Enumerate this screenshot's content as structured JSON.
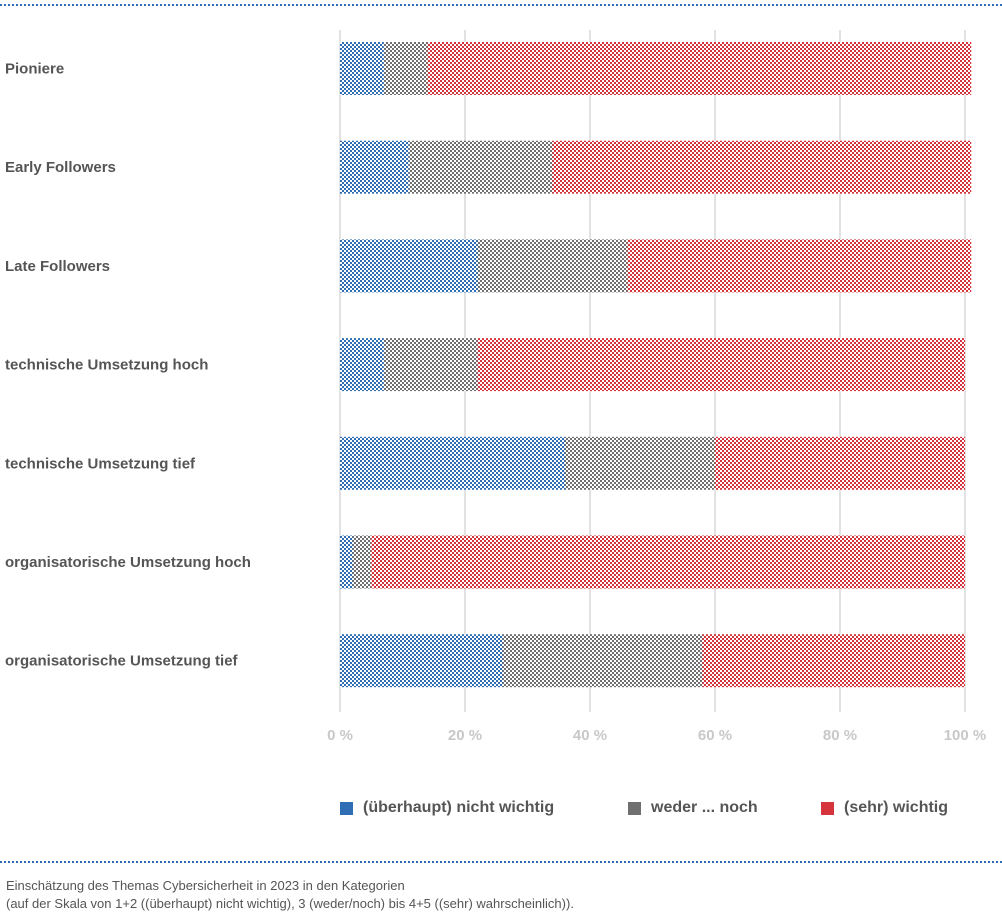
{
  "chart_data": {
    "type": "bar",
    "orientation": "horizontal",
    "stacked": true,
    "categories": [
      "Pioniere",
      "Early Followers",
      "Late Followers",
      "technische Umsetzung hoch",
      "technische Umsetzung tief",
      "organisatorische Umsetzung hoch",
      "organisatorische Umsetzung tief"
    ],
    "series": [
      {
        "name": "(überhaupt) nicht wichtig",
        "color": "#2f6db5",
        "values": [
          7,
          11,
          22,
          7,
          36,
          2,
          26
        ]
      },
      {
        "name": "weder ... noch",
        "color": "#6f6f6f",
        "values": [
          7,
          23,
          24,
          15,
          24,
          3,
          32
        ]
      },
      {
        "name": "(sehr) wichtig",
        "color": "#d6343c",
        "values": [
          87,
          67,
          55,
          78,
          40,
          95,
          42
        ]
      }
    ],
    "xlim": [
      0,
      100
    ],
    "xticks": [
      0,
      20,
      40,
      60,
      80,
      100
    ],
    "tick_labels": [
      "0 %",
      "20 %",
      "40 %",
      "60 %",
      "80 %",
      "100 %"
    ],
    "grid": true,
    "legend_position": "bottom"
  },
  "caption": {
    "line1": "Einschätzung des Themas Cybersicherheit in 2023 in den Kategorien",
    "line2": "(auf der Skala von 1+2 ((überhaupt) nicht wichtig), 3 (weder/noch) bis 4+5 ((sehr) wahrscheinlich))."
  }
}
